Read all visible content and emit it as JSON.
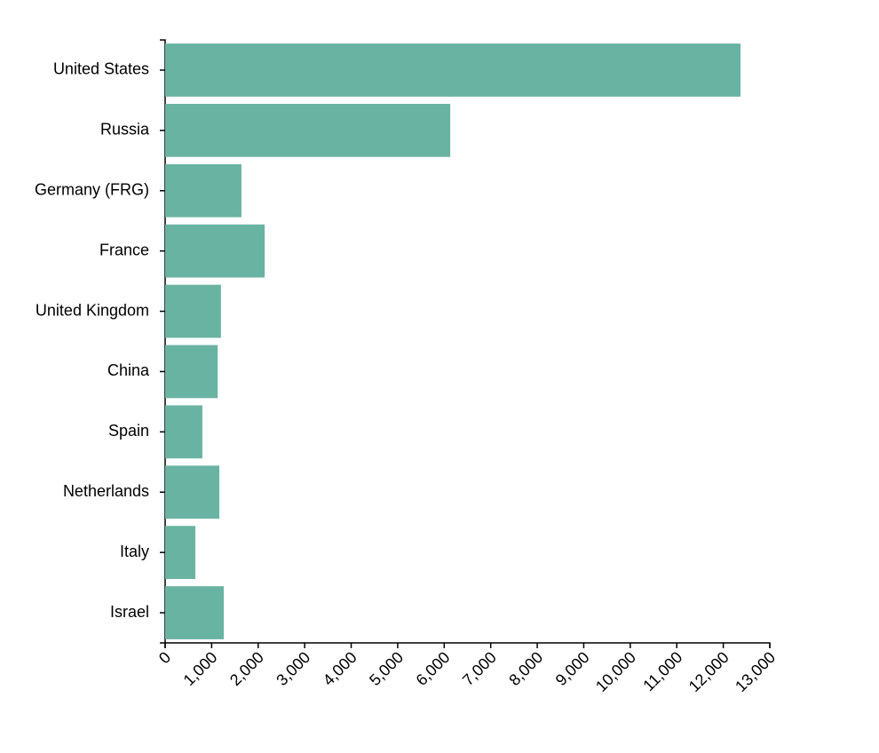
{
  "chart_data": {
    "type": "bar",
    "orientation": "horizontal",
    "categories": [
      "United States",
      "Russia",
      "Germany (FRG)",
      "France",
      "United Kingdom",
      "China",
      "Spain",
      "Netherlands",
      "Italy",
      "Israel"
    ],
    "values": [
      12370,
      6130,
      1640,
      2140,
      1200,
      1130,
      800,
      1165,
      650,
      1260
    ],
    "color": "#69b3a2",
    "xlim": [
      0,
      13000
    ],
    "xticks": [
      0,
      {
        "value": 1000,
        "label": "1,000"
      },
      {
        "value": 2000,
        "label": "2,000"
      },
      {
        "value": 3000,
        "label": "3,000"
      },
      {
        "value": 4000,
        "label": "4,000"
      },
      {
        "value": 5000,
        "label": "5,000"
      },
      {
        "value": 6000,
        "label": "6,000"
      },
      {
        "value": 7000,
        "label": "7,000"
      },
      {
        "value": 8000,
        "label": "8,000"
      },
      {
        "value": 9000,
        "label": "9,000"
      },
      {
        "value": 10000,
        "label": "10,000"
      },
      {
        "value": 11000,
        "label": "11,000"
      },
      {
        "value": 12000,
        "label": "12,000"
      },
      {
        "value": 13000,
        "label": "13,000"
      }
    ],
    "grid": false
  }
}
